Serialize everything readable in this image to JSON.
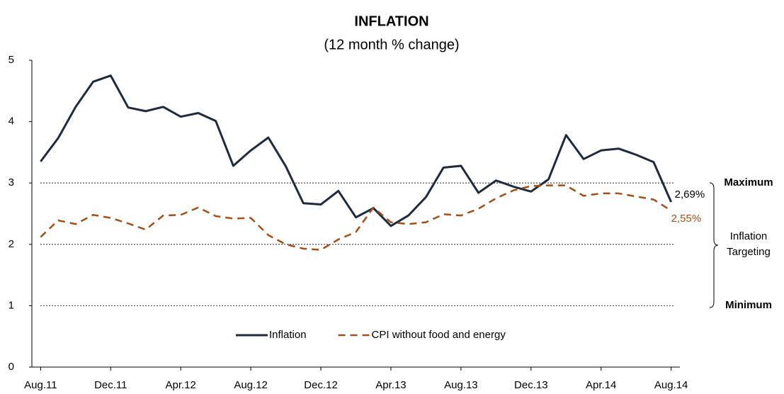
{
  "chart_data": {
    "type": "line",
    "title": "INFLATION",
    "subtitle": "(12 month % change)",
    "categories": [
      "Aug.11",
      null,
      null,
      null,
      "Dec.11",
      null,
      null,
      null,
      "Apr.12",
      null,
      null,
      null,
      "Aug.12",
      null,
      null,
      null,
      "Dec.12",
      null,
      null,
      null,
      "Apr.13",
      null,
      null,
      null,
      "Aug.13",
      null,
      null,
      null,
      "Dec.13",
      null,
      null,
      null,
      "Apr.14",
      null,
      null,
      null,
      "Aug.14"
    ],
    "series": [
      {
        "name": "Inflation",
        "color": "#1f2a3c",
        "dash": "solid",
        "values": [
          3.35,
          3.73,
          4.24,
          4.65,
          4.75,
          4.23,
          4.17,
          4.24,
          4.08,
          4.14,
          4.01,
          3.28,
          3.53,
          3.74,
          3.27,
          2.67,
          2.65,
          2.87,
          2.44,
          2.59,
          2.3,
          2.47,
          2.77,
          3.25,
          3.28,
          2.84,
          3.04,
          2.94,
          2.86,
          3.06,
          3.78,
          3.39,
          3.53,
          3.56,
          3.46,
          3.34,
          2.69
        ],
        "value_labels": [
          null,
          null,
          null,
          null,
          null,
          null,
          null,
          null,
          null,
          null,
          null,
          null,
          null,
          null,
          null,
          null,
          null,
          null,
          null,
          null,
          null,
          null,
          null,
          null,
          null,
          null,
          null,
          null,
          null,
          null,
          null,
          null,
          null,
          null,
          null,
          null,
          "2,69%"
        ],
        "label_color": "#000000"
      },
      {
        "name": "CPI without food and energy",
        "color": "#a0501a",
        "dash": "dashed",
        "values": [
          2.12,
          2.39,
          2.33,
          2.48,
          2.43,
          2.34,
          2.24,
          2.47,
          2.48,
          2.6,
          2.46,
          2.42,
          2.43,
          2.15,
          2.0,
          1.93,
          1.91,
          2.08,
          2.2,
          2.6,
          2.36,
          2.33,
          2.36,
          2.49,
          2.47,
          2.58,
          2.75,
          2.88,
          2.95,
          2.96,
          2.96,
          2.79,
          2.83,
          2.83,
          2.78,
          2.73,
          2.55
        ],
        "value_labels": [
          null,
          null,
          null,
          null,
          null,
          null,
          null,
          null,
          null,
          null,
          null,
          null,
          null,
          null,
          null,
          null,
          null,
          null,
          null,
          null,
          null,
          null,
          null,
          null,
          null,
          null,
          null,
          null,
          null,
          null,
          null,
          null,
          null,
          null,
          null,
          null,
          "2,55%"
        ],
        "label_color": "#a0501a"
      }
    ],
    "ylim": [
      0,
      5
    ],
    "yticks": [
      0,
      1,
      2,
      3,
      4,
      5
    ],
    "grid": false,
    "legend": "bottom",
    "annotations": [
      {
        "text": "Maximum",
        "value": 3,
        "bold": true
      },
      {
        "text": "Inflation Targeting",
        "value": 2,
        "bold": false
      },
      {
        "text": "Minimum",
        "value": 1,
        "bold": true
      }
    ]
  }
}
